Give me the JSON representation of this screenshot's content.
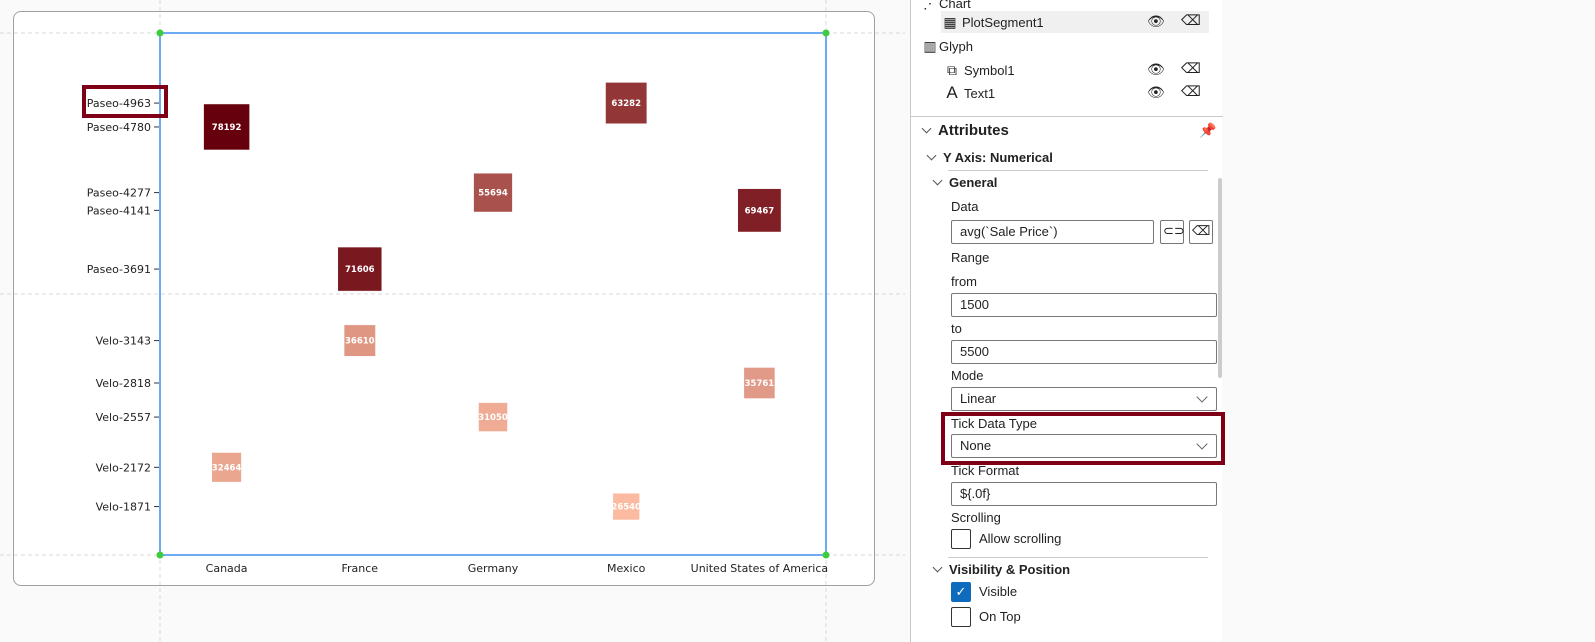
{
  "chart_data": {
    "type": "scatter",
    "x_categories": [
      "Canada",
      "France",
      "Germany",
      "Mexico",
      "United States of America"
    ],
    "ylim": [
      1500,
      5500
    ],
    "y_ticks": [
      {
        "value": 4963,
        "label": "Paseo-4963"
      },
      {
        "value": 4780,
        "label": "Paseo-4780"
      },
      {
        "value": 4277,
        "label": "Paseo-4277"
      },
      {
        "value": 4141,
        "label": "Paseo-4141"
      },
      {
        "value": 3691,
        "label": "Paseo-3691"
      },
      {
        "value": 3143,
        "label": "Velo-3143"
      },
      {
        "value": 2818,
        "label": "Velo-2818"
      },
      {
        "value": 2557,
        "label": "Velo-2557"
      },
      {
        "value": 2172,
        "label": "Velo-2172"
      },
      {
        "value": 1871,
        "label": "Velo-1871"
      }
    ],
    "points": [
      {
        "x": "Canada",
        "y": 4780,
        "value": "78192"
      },
      {
        "x": "Canada",
        "y": 2172,
        "value": "32464"
      },
      {
        "x": "France",
        "y": 3691,
        "value": "71606"
      },
      {
        "x": "France",
        "y": 3143,
        "value": "36610"
      },
      {
        "x": "Germany",
        "y": 4277,
        "value": "55694"
      },
      {
        "x": "Germany",
        "y": 2557,
        "value": "31050"
      },
      {
        "x": "Mexico",
        "y": 4963,
        "value": "63282"
      },
      {
        "x": "Mexico",
        "y": 1871,
        "value": "26540"
      },
      {
        "x": "United States of America",
        "y": 4141,
        "value": "69467"
      },
      {
        "x": "United States of America",
        "y": 2818,
        "value": "35761"
      }
    ],
    "color_scale": [
      "#fcbba1",
      "#67000d"
    ],
    "highlighted_tick": "Paseo-4963"
  },
  "tree": {
    "chart": "Chart",
    "plot_segment": "PlotSegment1",
    "glyph": "Glyph",
    "symbol": "Symbol1",
    "text": "Text1"
  },
  "attributes": {
    "title": "Attributes",
    "section": "Y Axis: Numerical",
    "general": "General",
    "data_label": "Data",
    "data_value": "avg(`Sale Price`)",
    "range_label": "Range",
    "from_label": "from",
    "from_value": "1500",
    "to_label": "to",
    "to_value": "5500",
    "mode_label": "Mode",
    "mode_value": "Linear",
    "tick_data_type_label": "Tick Data Type",
    "tick_data_type_value": "None",
    "tick_format_label": "Tick Format",
    "tick_format_value": "${.0f}",
    "scrolling_label": "Scrolling",
    "allow_scrolling": "Allow scrolling",
    "visibility_section": "Visibility & Position",
    "visible_label": "Visible",
    "on_top_label": "On Top",
    "visible": true,
    "on_top": false,
    "allow_scrolling_checked": false
  }
}
